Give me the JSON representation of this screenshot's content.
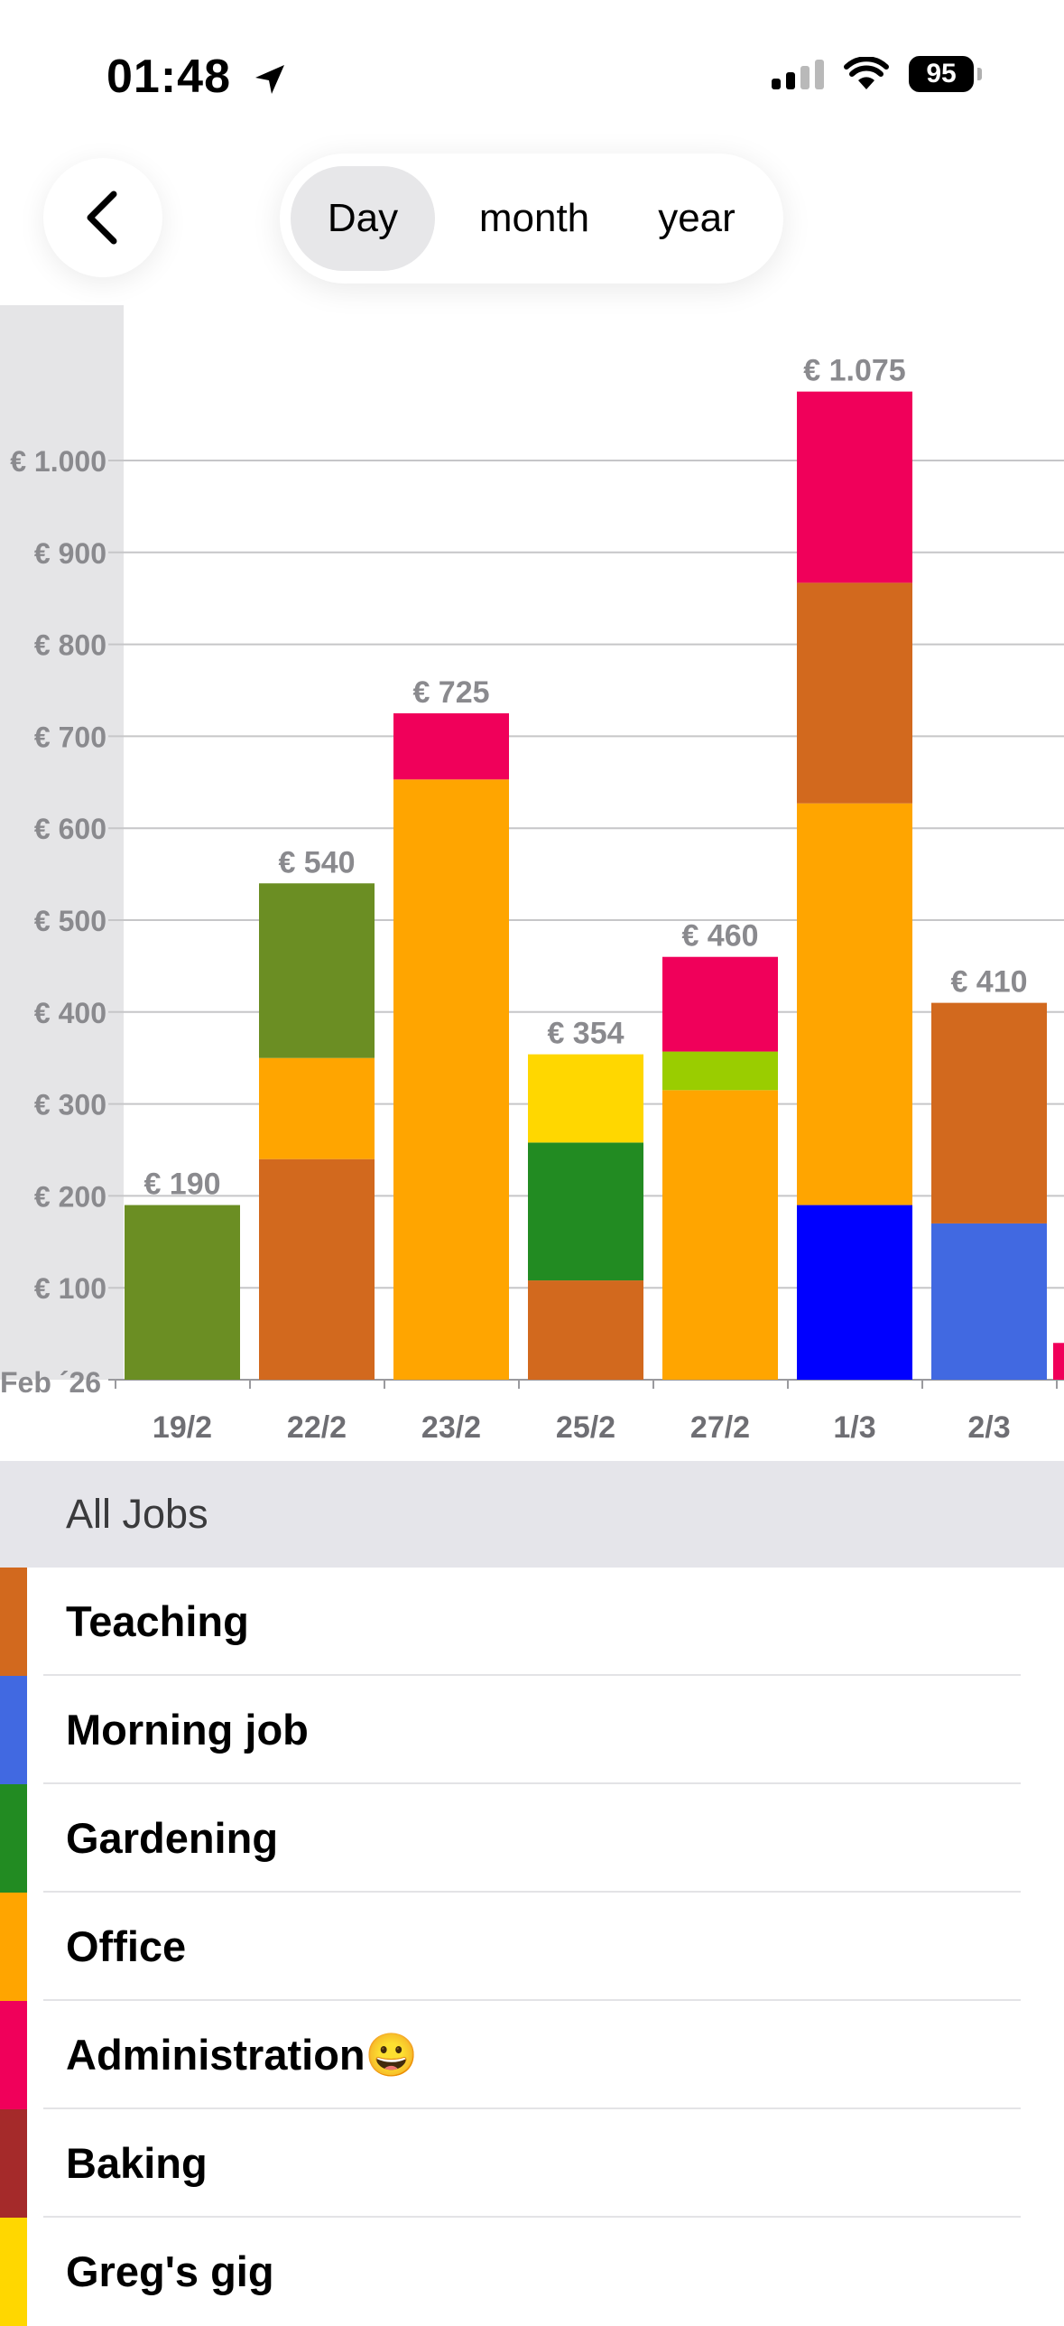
{
  "status_bar": {
    "time": "01:48",
    "battery": "95"
  },
  "nav": {
    "segments": [
      {
        "label": "Day",
        "active": true
      },
      {
        "label": "month",
        "active": false
      },
      {
        "label": "year",
        "active": false
      }
    ]
  },
  "chart_data": {
    "type": "bar",
    "stacked": true,
    "period_label": "Feb ´26",
    "y_ticks": [
      "€ 100",
      "€ 200",
      "€ 300",
      "€ 400",
      "€ 500",
      "€ 600",
      "€ 700",
      "€ 800",
      "€ 900",
      "€ 1.000"
    ],
    "ylim": [
      0,
      1170
    ],
    "grid": true,
    "categories": [
      "19/2",
      "22/2",
      "23/2",
      "25/2",
      "27/2",
      "1/3",
      "2/3"
    ],
    "totals": [
      "€ 190",
      "€ 540",
      "€ 725",
      "€ 354",
      "€ 460",
      "€ 1.075",
      "€ 410"
    ],
    "colors": {
      "Teaching": "#D2691E",
      "Morning job": "#4169E1",
      "Gardening": "#228B22",
      "Office": "#FFA500",
      "Administration": "#F0005A",
      "Baking": "#A52A2A",
      "Greg's gig": "#FFD700",
      "Olive": "#6B8E23",
      "Lime": "#9ACD00",
      "Blue": "#0000FF"
    },
    "stacks": [
      [
        {
          "color": "Olive",
          "value": 190
        }
      ],
      [
        {
          "color": "Teaching",
          "value": 240
        },
        {
          "color": "Office",
          "value": 110
        },
        {
          "color": "Olive",
          "value": 190
        }
      ],
      [
        {
          "color": "Office",
          "value": 653
        },
        {
          "color": "Administration",
          "value": 72
        }
      ],
      [
        {
          "color": "Teaching",
          "value": 108
        },
        {
          "color": "Gardening",
          "value": 150
        },
        {
          "color": "Greg's gig",
          "value": 96
        }
      ],
      [
        {
          "color": "Office",
          "value": 315
        },
        {
          "color": "Lime",
          "value": 42
        },
        {
          "color": "Administration",
          "value": 103
        }
      ],
      [
        {
          "color": "Blue",
          "value": 190
        },
        {
          "color": "Office",
          "value": 437
        },
        {
          "color": "Teaching",
          "value": 240
        },
        {
          "color": "Administration",
          "value": 208
        }
      ],
      [
        {
          "color": "Morning job",
          "value": 170
        },
        {
          "color": "Teaching",
          "value": 240
        }
      ]
    ],
    "partial_next": {
      "color": "Administration",
      "value": 40
    }
  },
  "list": {
    "header": "All Jobs",
    "jobs": [
      {
        "name": "Teaching",
        "color": "#D2691E"
      },
      {
        "name": "Morning job",
        "color": "#4169E1"
      },
      {
        "name": "Gardening",
        "color": "#228B22"
      },
      {
        "name": "Office",
        "color": "#FFA500"
      },
      {
        "name": "Administration😀",
        "color": "#F0005A"
      },
      {
        "name": "Baking",
        "color": "#A52A2A"
      },
      {
        "name": "Greg's gig",
        "color": "#FFD700"
      }
    ]
  }
}
